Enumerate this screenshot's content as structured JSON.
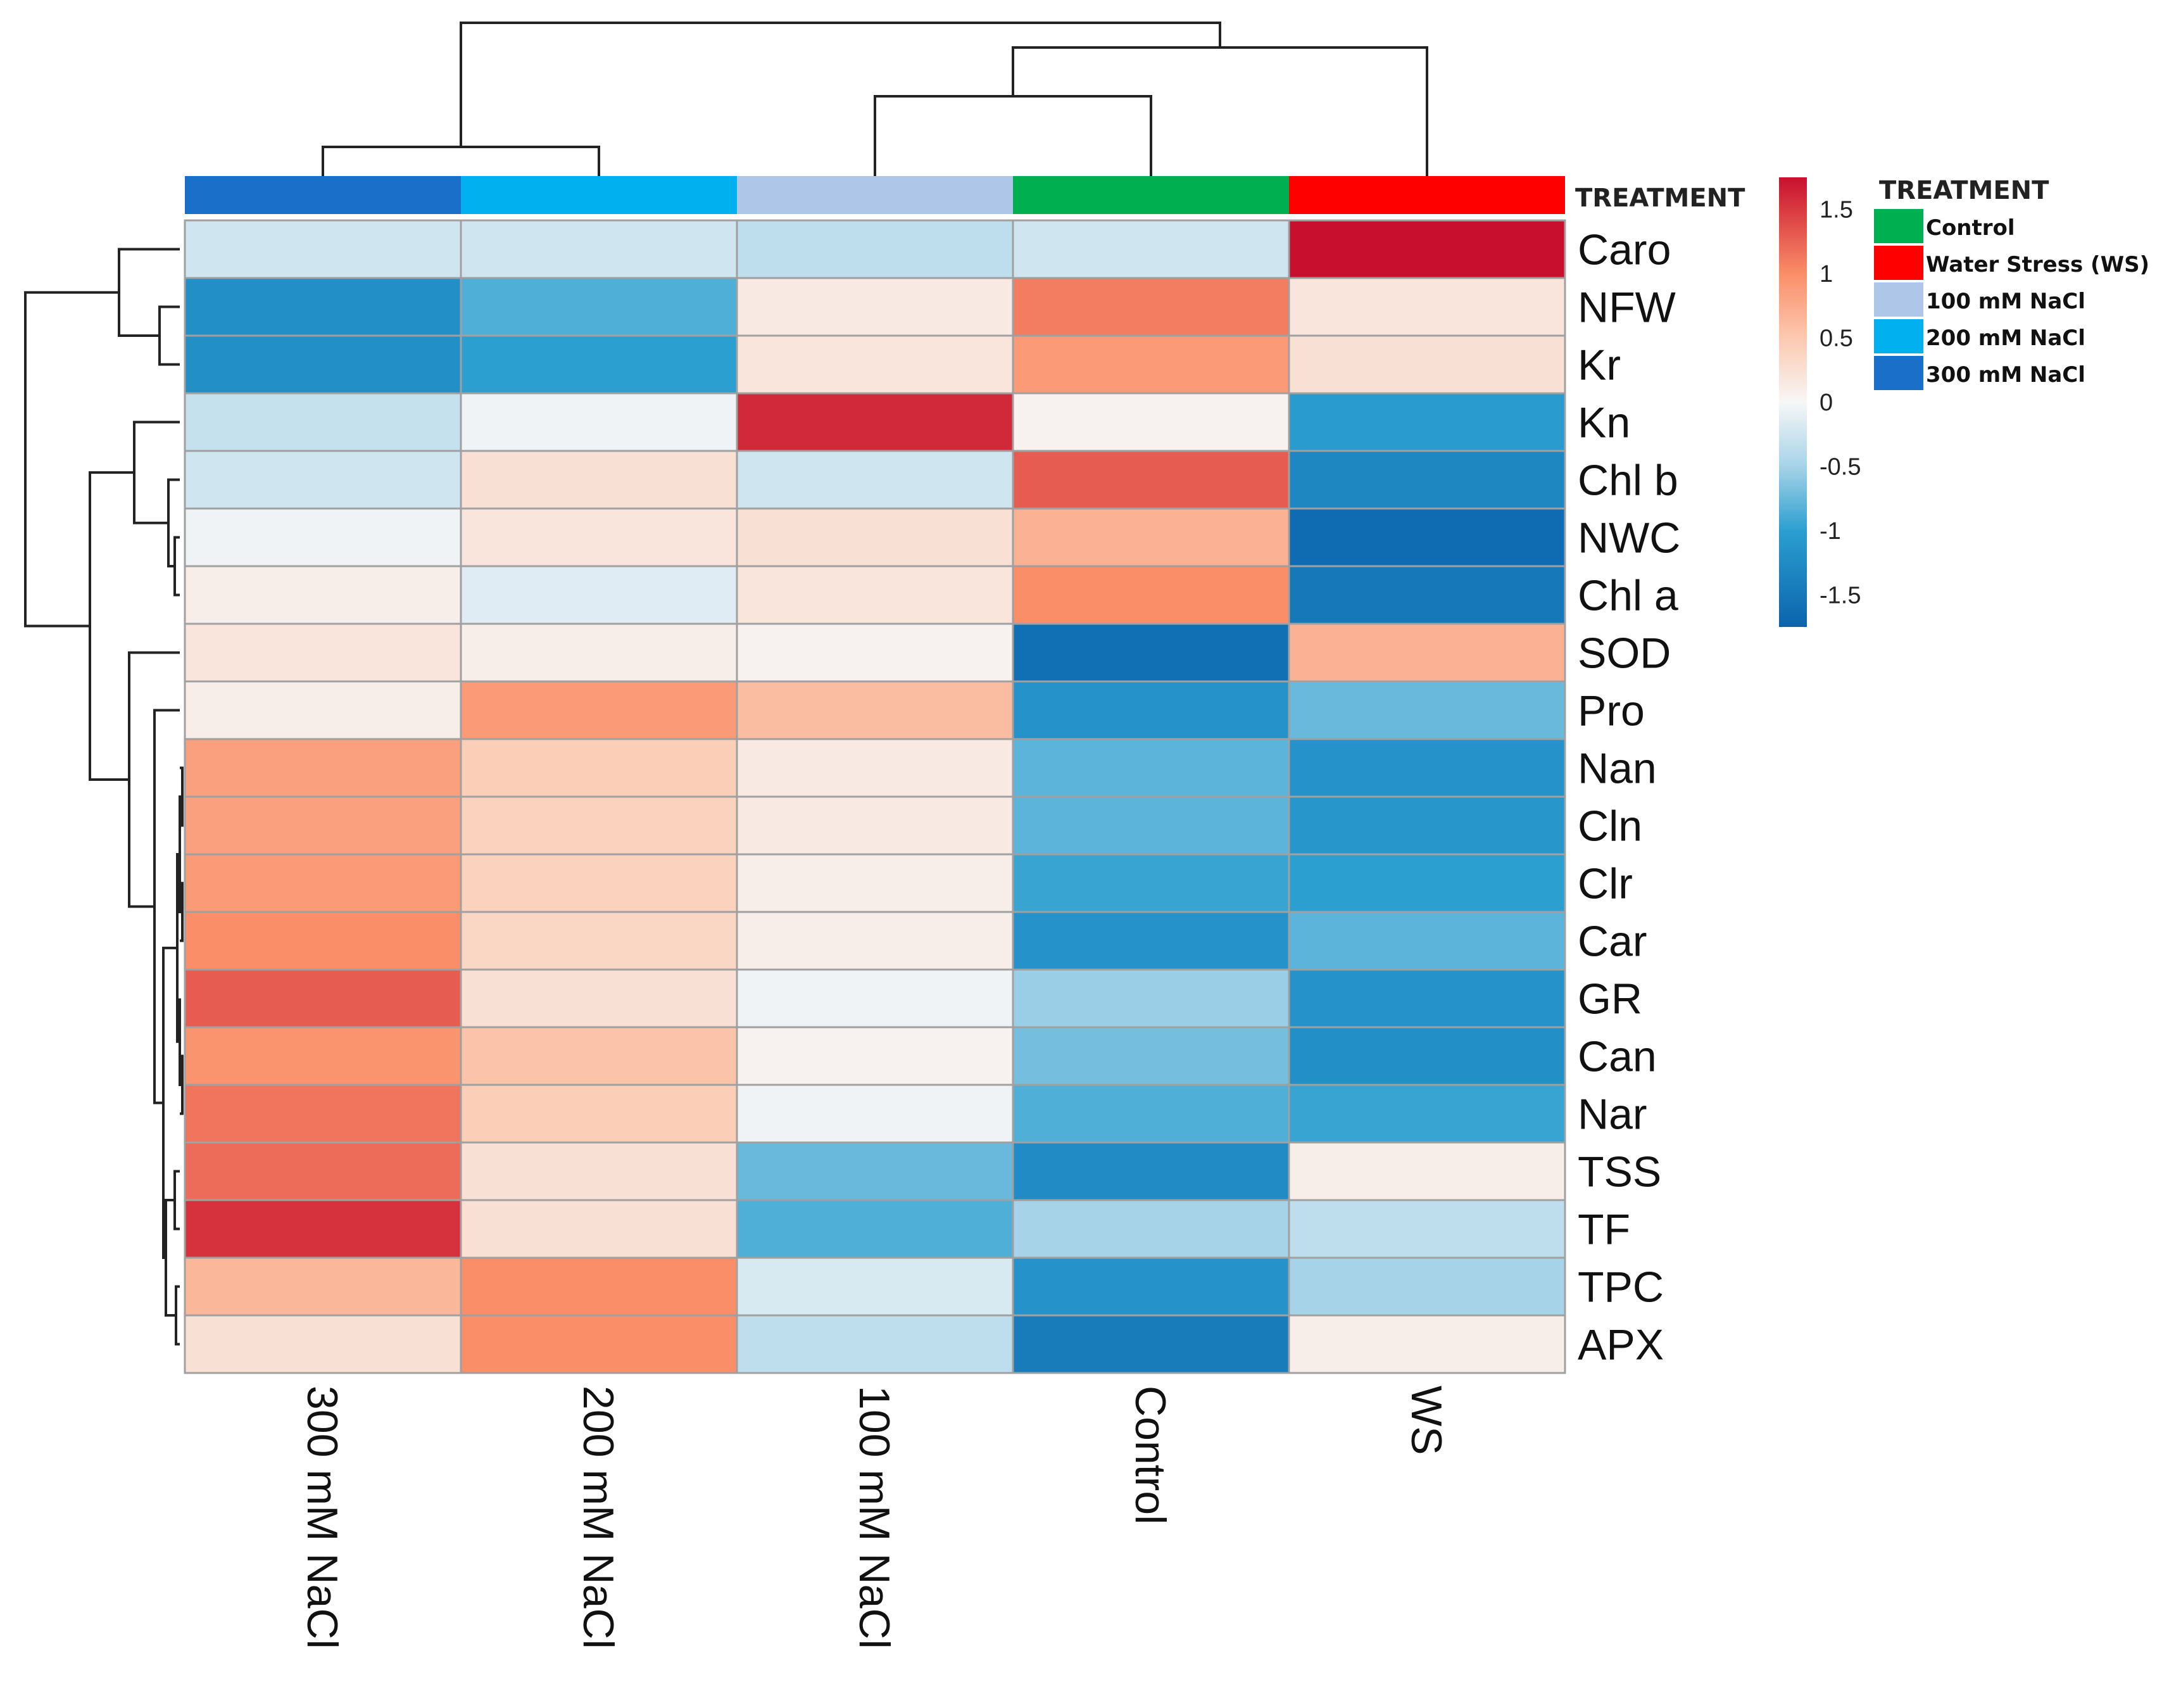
{
  "chart_data": {
    "type": "heatmap",
    "title": "",
    "columns": [
      "300 mM NaCl",
      "200 mM NaCl",
      "100 mM NaCl",
      "Control",
      "WS"
    ],
    "column_treatment_colors": [
      "#1a70c8",
      "#00b0ef",
      "#aec7e8",
      "#00b050",
      "#ff0000"
    ],
    "annotation_title": "TREATMENT",
    "rows": [
      "Caro",
      "NFW",
      "Kr",
      "Kn",
      "Chl b",
      "NWC",
      "Chl a",
      "SOD",
      "Pro",
      "Nan",
      "Cln",
      "Clr",
      "Car",
      "GR",
      "Can",
      "Nar",
      "TSS",
      "TF",
      "TPC",
      "APX"
    ],
    "values": [
      [
        -0.25,
        -0.25,
        -0.35,
        -0.25,
        1.75
      ],
      [
        -1.2,
        -0.85,
        0.15,
        1.1,
        0.2
      ],
      [
        -1.2,
        -1.0,
        0.2,
        0.9,
        0.25
      ],
      [
        -0.3,
        -0.05,
        1.6,
        0.05,
        -1.05
      ],
      [
        -0.25,
        0.25,
        -0.25,
        1.3,
        -1.3
      ],
      [
        -0.05,
        0.2,
        0.25,
        0.7,
        -1.65
      ],
      [
        0.1,
        -0.15,
        0.2,
        1.0,
        -1.5
      ],
      [
        0.2,
        0.1,
        0.05,
        -1.6,
        0.7
      ],
      [
        0.1,
        0.9,
        0.6,
        -1.15,
        -0.75
      ],
      [
        0.85,
        0.45,
        0.15,
        -0.8,
        -1.15
      ],
      [
        0.85,
        0.4,
        0.15,
        -0.8,
        -1.1
      ],
      [
        0.9,
        0.4,
        0.1,
        -0.95,
        -1.0
      ],
      [
        1.0,
        0.35,
        0.1,
        -1.15,
        -0.8
      ],
      [
        1.3,
        0.25,
        -0.05,
        -0.55,
        -1.15
      ],
      [
        0.95,
        0.55,
        0.05,
        -0.7,
        -1.2
      ],
      [
        1.15,
        0.45,
        -0.05,
        -0.85,
        -0.95
      ],
      [
        1.2,
        0.25,
        -0.75,
        -1.25,
        0.1
      ],
      [
        1.55,
        0.25,
        -0.85,
        -0.5,
        -0.35
      ],
      [
        0.65,
        1.0,
        -0.2,
        -1.15,
        -0.5
      ],
      [
        0.25,
        1.0,
        -0.35,
        -1.45,
        0.1
      ]
    ],
    "color_scale": {
      "min": -1.75,
      "max": 1.75,
      "stops": [
        {
          "value": -1.75,
          "color": "#0b64ad"
        },
        {
          "value": -1.0,
          "color": "#2b9fd0"
        },
        {
          "value": -0.5,
          "color": "#a6d3e8"
        },
        {
          "value": 0,
          "color": "#f7f7f7"
        },
        {
          "value": 0.5,
          "color": "#fbc9b0"
        },
        {
          "value": 1.0,
          "color": "#fa8e68"
        },
        {
          "value": 1.75,
          "color": "#c8102e"
        }
      ],
      "ticks": [
        "1.5",
        "1",
        "0.5",
        "0",
        "-0.5",
        "-1",
        "-1.5"
      ]
    },
    "legend": {
      "title": "TREATMENT",
      "items": [
        {
          "label": "Control",
          "color": "#00b050"
        },
        {
          "label": "Water Stress (WS)",
          "color": "#ff0000"
        },
        {
          "label": "100 mM NaCl",
          "color": "#aec7e8"
        },
        {
          "label": "200 mM NaCl",
          "color": "#00b0ef"
        },
        {
          "label": "300 mM NaCl",
          "color": "#1a70c8"
        }
      ]
    },
    "dendrograms": {
      "columns": "((300 mM NaCl, 200 mM NaCl), ((100 mM NaCl, Control), WS))",
      "rows": "((Caro, (NFW, Kr)), ((Kn, (Chl b, (NWC, Chl a))), (SOD, (Pro, ...))))"
    }
  }
}
